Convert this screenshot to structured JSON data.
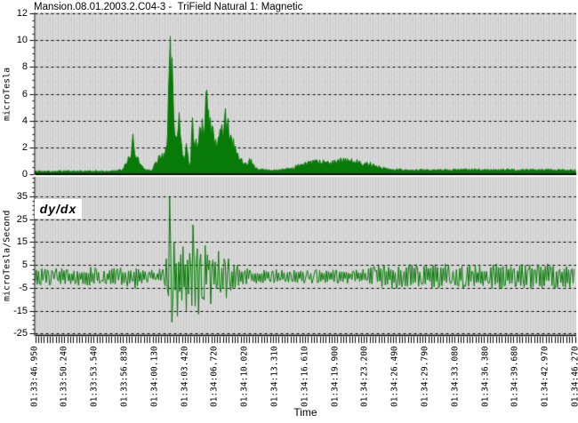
{
  "x_axis": {
    "label": "Time",
    "tick_labels": [
      "01:33:46.950",
      "01:33:50.240",
      "01:33:53.540",
      "01:33:56.830",
      "01:34:00.130",
      "01:34:03.420",
      "01:34:06.720",
      "01:34:10.020",
      "01:34:13.310",
      "01:34:16.610",
      "01:34:19.900",
      "01:34:23.200",
      "01:34:26.490",
      "01:34:29.790",
      "01:34:33.080",
      "01:34:36.380",
      "01:34:39.680",
      "01:34:42.970",
      "01:34:46.270"
    ],
    "span_seconds": 59.32
  },
  "colors": {
    "series": "#077a07",
    "plot_bg": "#d9d9d9",
    "plot_stripe": "#cbcbcb",
    "plot_dot": "#ececec",
    "grid": "#000000",
    "text": "#000000",
    "background": "#ffffff"
  },
  "noise_seed": 42,
  "chart_data": [
    {
      "type": "area",
      "title": "Mansion.08.01.2003.2.C04-3 -  TriField Natural 1: Magnetic",
      "ylabel": "microTesla",
      "ylim": [
        0,
        12
      ],
      "yticks": [
        12,
        10,
        8,
        6,
        4,
        2,
        0
      ],
      "grid": "horizontal-dashed",
      "legend_position": "none",
      "baseline_noise_microtesla": [
        0.1,
        0.6
      ],
      "shape_keypoints_t_v": [
        [
          0,
          0.38
        ],
        [
          8.8,
          0.4
        ],
        [
          9.6,
          0.6
        ],
        [
          10.15,
          1.1
        ],
        [
          10.75,
          3.0
        ],
        [
          11.1,
          1.8
        ],
        [
          11.5,
          1.0
        ],
        [
          12.2,
          0.55
        ],
        [
          12.9,
          0.6
        ],
        [
          13.3,
          1.25
        ],
        [
          13.75,
          1.9
        ],
        [
          14.1,
          1.5
        ],
        [
          14.45,
          2.4
        ],
        [
          14.7,
          9.0
        ],
        [
          14.78,
          10.3
        ],
        [
          14.9,
          6.5
        ],
        [
          15.05,
          8.7
        ],
        [
          15.25,
          4.5
        ],
        [
          15.55,
          3.2
        ],
        [
          15.8,
          4.6
        ],
        [
          16.1,
          2.2
        ],
        [
          16.35,
          1.1
        ],
        [
          16.6,
          2.9
        ],
        [
          16.85,
          0.9
        ],
        [
          17.1,
          1.4
        ],
        [
          17.3,
          4.2
        ],
        [
          17.55,
          2.6
        ],
        [
          17.8,
          3.1
        ],
        [
          18.1,
          4.3
        ],
        [
          18.5,
          5.2
        ],
        [
          18.8,
          6.3
        ],
        [
          19.1,
          5.0
        ],
        [
          19.5,
          3.7
        ],
        [
          19.9,
          3.1
        ],
        [
          20.4,
          3.6
        ],
        [
          20.9,
          4.9
        ],
        [
          21.3,
          4.2
        ],
        [
          21.8,
          2.7
        ],
        [
          22.3,
          1.5
        ],
        [
          22.9,
          1.0
        ],
        [
          23.5,
          1.35
        ],
        [
          24.1,
          0.8
        ],
        [
          24.8,
          0.55
        ],
        [
          26.5,
          0.5
        ],
        [
          28.5,
          0.8
        ],
        [
          30.5,
          1.05
        ],
        [
          32.5,
          1.2
        ],
        [
          34.5,
          1.25
        ],
        [
          36.0,
          1.1
        ],
        [
          37.5,
          0.85
        ],
        [
          39.0,
          0.62
        ],
        [
          40.5,
          0.55
        ],
        [
          44,
          0.55
        ],
        [
          48,
          0.6
        ],
        [
          52,
          0.55
        ],
        [
          56,
          0.6
        ],
        [
          59.32,
          0.55
        ]
      ],
      "peaks_t_v": [
        [
          10.75,
          3.0
        ],
        [
          14.78,
          10.3
        ],
        [
          15.05,
          8.7
        ],
        [
          15.8,
          4.6
        ],
        [
          17.3,
          4.2
        ],
        [
          18.8,
          6.3
        ],
        [
          20.9,
          4.9
        ]
      ]
    },
    {
      "type": "line",
      "label": "dy/dx",
      "ylabel": "microTesla/Second",
      "ylim": [
        -25,
        35
      ],
      "yticks": [
        35,
        25,
        15,
        5,
        -5,
        -15,
        -25
      ],
      "grid": "horizontal-dashed",
      "legend_position": "inside-top-left",
      "envelope_keypoints_t_amp": [
        [
          0,
          3.9
        ],
        [
          3,
          3.8
        ],
        [
          6,
          4.0
        ],
        [
          9.5,
          3.8
        ],
        [
          10.4,
          4.8
        ],
        [
          10.9,
          5.8
        ],
        [
          11.4,
          3.4
        ],
        [
          12.3,
          2.7
        ],
        [
          13.2,
          3.0
        ],
        [
          13.9,
          3.6
        ],
        [
          14.35,
          7
        ],
        [
          14.7,
          30
        ],
        [
          14.95,
          22
        ],
        [
          15.3,
          16
        ],
        [
          15.7,
          13
        ],
        [
          16.2,
          11
        ],
        [
          16.7,
          12
        ],
        [
          17.1,
          10
        ],
        [
          17.35,
          20
        ],
        [
          17.7,
          14
        ],
        [
          18.1,
          10
        ],
        [
          18.6,
          12
        ],
        [
          19.2,
          9
        ],
        [
          19.8,
          10
        ],
        [
          20.5,
          7.5
        ],
        [
          21.2,
          8
        ],
        [
          21.9,
          5.5
        ],
        [
          22.7,
          4.2
        ],
        [
          23.8,
          3.4
        ],
        [
          25.5,
          3.1
        ],
        [
          28,
          3.0
        ],
        [
          31,
          3.1
        ],
        [
          34,
          3.0
        ],
        [
          36.2,
          3.3
        ],
        [
          37.6,
          5.2
        ],
        [
          39.5,
          5.6
        ],
        [
          42,
          5.2
        ],
        [
          45,
          5.6
        ],
        [
          48,
          5.3
        ],
        [
          51,
          5.6
        ],
        [
          54,
          5.3
        ],
        [
          57,
          5.6
        ],
        [
          59.32,
          5.3
        ]
      ],
      "spikes_t_v": [
        [
          14.75,
          34.5
        ],
        [
          14.95,
          -20
        ],
        [
          15.25,
          15
        ],
        [
          15.6,
          -17.5
        ],
        [
          16.15,
          13
        ],
        [
          16.6,
          -15
        ],
        [
          17.3,
          22.5
        ],
        [
          17.55,
          -13
        ],
        [
          17.9,
          -16.5
        ],
        [
          18.7,
          13.5
        ],
        [
          19.3,
          -12
        ],
        [
          20.1,
          11
        ],
        [
          20.9,
          -9.5
        ]
      ]
    }
  ]
}
